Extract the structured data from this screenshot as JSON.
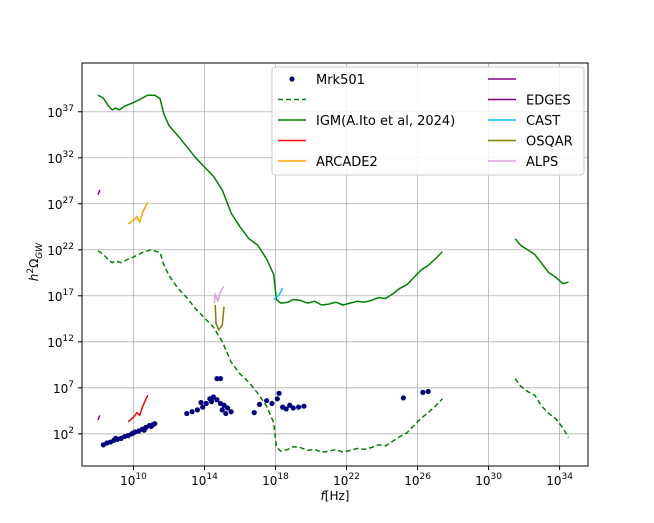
{
  "chart_data": {
    "type": "line",
    "title": "",
    "xlabel": "f[Hz]",
    "ylabel": "h^2Ω_GW",
    "xscale": "log10",
    "yscale": "log10",
    "xlim_log10": [
      7.1,
      35.6
    ],
    "ylim_log10": [
      -1.5,
      42.3
    ],
    "grid": true,
    "legend_placement": "top-right, two columns",
    "xticks": [
      {
        "exp": 10,
        "base": "10",
        "sup": "10"
      },
      {
        "exp": 14,
        "base": "10",
        "sup": "14"
      },
      {
        "exp": 18,
        "base": "10",
        "sup": "18"
      },
      {
        "exp": 22,
        "base": "10",
        "sup": "22"
      },
      {
        "exp": 26,
        "base": "10",
        "sup": "26"
      },
      {
        "exp": 30,
        "base": "10",
        "sup": "30"
      },
      {
        "exp": 34,
        "base": "10",
        "sup": "34"
      }
    ],
    "yticks": [
      {
        "exp": 2,
        "base": "10",
        "sup": "2"
      },
      {
        "exp": 7,
        "base": "10",
        "sup": "7"
      },
      {
        "exp": 12,
        "base": "10",
        "sup": "12"
      },
      {
        "exp": 17,
        "base": "10",
        "sup": "17"
      },
      {
        "exp": 22,
        "base": "10",
        "sup": "22"
      },
      {
        "exp": 27,
        "base": "10",
        "sup": "27"
      },
      {
        "exp": 32,
        "base": "10",
        "sup": "32"
      },
      {
        "exp": 37,
        "base": "10",
        "sup": "37"
      }
    ],
    "legend": [
      {
        "name": "Mrk501",
        "color": "#000080",
        "style": "dot"
      },
      {
        "name": "",
        "color": "#008000",
        "style": "dashed"
      },
      {
        "name": "IGM(A.Ito et al, 2024)",
        "color": "#008000",
        "style": "solid"
      },
      {
        "name": "",
        "color": "#ff0000",
        "style": "solid"
      },
      {
        "name": "ARCADE2",
        "color": "#ffa500",
        "style": "solid"
      },
      {
        "name": "",
        "color": "#8b008b",
        "style": "solid"
      },
      {
        "name": "EDGES",
        "color": "#800080",
        "style": "solid"
      },
      {
        "name": "CAST",
        "color": "#00bfff",
        "style": "solid"
      },
      {
        "name": "OSQAR",
        "color": "#808000",
        "style": "solid"
      },
      {
        "name": "ALPS",
        "color": "#dda0dd",
        "style": "solid"
      }
    ],
    "series": [
      {
        "name": "IGM(A.Ito et al, 2024)",
        "color": "#008000",
        "style": "solid",
        "points": [
          [
            8.0,
            38.8
          ],
          [
            8.3,
            38.5
          ],
          [
            8.6,
            37.6
          ],
          [
            8.8,
            37.2
          ],
          [
            9.0,
            37.4
          ],
          [
            9.2,
            37.2
          ],
          [
            9.5,
            37.6
          ],
          [
            10.0,
            38.0
          ],
          [
            10.5,
            38.5
          ],
          [
            10.8,
            38.8
          ],
          [
            11.2,
            38.8
          ],
          [
            11.5,
            38.4
          ],
          [
            11.7,
            36.8
          ],
          [
            12.0,
            35.5
          ],
          [
            12.5,
            34.4
          ],
          [
            13.0,
            33.2
          ],
          [
            13.5,
            32.0
          ],
          [
            14.0,
            31.0
          ],
          [
            14.5,
            30.0
          ],
          [
            15.0,
            28.5
          ],
          [
            15.5,
            26.0
          ],
          [
            16.0,
            24.5
          ],
          [
            16.5,
            23.2
          ],
          [
            17.0,
            22.5
          ],
          [
            17.5,
            21.0
          ],
          [
            17.9,
            19.3
          ],
          [
            18.05,
            16.6
          ],
          [
            18.3,
            16.2
          ],
          [
            18.7,
            16.3
          ],
          [
            19.0,
            16.6
          ],
          [
            19.4,
            16.5
          ],
          [
            19.8,
            16.2
          ],
          [
            20.2,
            16.4
          ],
          [
            20.6,
            16.0
          ],
          [
            21.0,
            16.1
          ],
          [
            21.4,
            16.3
          ],
          [
            21.8,
            16.0
          ],
          [
            22.2,
            16.2
          ],
          [
            22.6,
            16.4
          ],
          [
            23.0,
            16.3
          ],
          [
            23.4,
            16.5
          ],
          [
            23.8,
            16.8
          ],
          [
            24.2,
            16.7
          ],
          [
            24.6,
            17.2
          ],
          [
            25.0,
            17.8
          ],
          [
            25.4,
            18.2
          ],
          [
            25.8,
            19.0
          ],
          [
            26.2,
            19.8
          ],
          [
            26.6,
            20.3
          ],
          [
            27.0,
            21.0
          ],
          [
            27.4,
            21.8
          ]
        ]
      },
      {
        "name": "IGM(A.Ito et al, 2024)",
        "color": "#008000",
        "style": "solid",
        "points": [
          [
            31.5,
            23.2
          ],
          [
            31.8,
            22.5
          ],
          [
            32.2,
            22.0
          ],
          [
            32.6,
            21.5
          ],
          [
            33.0,
            20.5
          ],
          [
            33.4,
            19.5
          ],
          [
            33.8,
            19.0
          ],
          [
            34.2,
            18.3
          ],
          [
            34.5,
            18.5
          ]
        ]
      },
      {
        "name": "",
        "color": "#008000",
        "style": "dashed",
        "points": [
          [
            8.0,
            21.9
          ],
          [
            8.3,
            21.5
          ],
          [
            8.6,
            20.9
          ],
          [
            8.8,
            20.6
          ],
          [
            9.0,
            20.8
          ],
          [
            9.3,
            20.6
          ],
          [
            9.6,
            20.9
          ],
          [
            10.0,
            21.2
          ],
          [
            10.5,
            21.7
          ],
          [
            11.0,
            22.0
          ],
          [
            11.5,
            21.7
          ],
          [
            11.7,
            20.4
          ],
          [
            12.0,
            19.2
          ],
          [
            12.5,
            17.8
          ],
          [
            13.0,
            16.8
          ],
          [
            13.5,
            15.6
          ],
          [
            14.0,
            14.6
          ],
          [
            14.5,
            13.6
          ],
          [
            15.0,
            12.0
          ],
          [
            15.5,
            9.8
          ],
          [
            16.0,
            8.5
          ],
          [
            16.5,
            7.6
          ],
          [
            17.0,
            6.4
          ],
          [
            17.5,
            5.0
          ],
          [
            17.9,
            3.2
          ],
          [
            18.05,
            0.6
          ],
          [
            18.3,
            0.1
          ],
          [
            18.7,
            0.3
          ],
          [
            19.0,
            0.6
          ],
          [
            19.4,
            0.5
          ],
          [
            19.8,
            0.2
          ],
          [
            20.2,
            0.3
          ],
          [
            20.6,
            0.0
          ],
          [
            21.0,
            0.1
          ],
          [
            21.4,
            0.3
          ],
          [
            21.8,
            0.0
          ],
          [
            22.2,
            0.2
          ],
          [
            22.6,
            0.4
          ],
          [
            23.0,
            0.3
          ],
          [
            23.4,
            0.5
          ],
          [
            23.8,
            0.8
          ],
          [
            24.2,
            0.7
          ],
          [
            24.6,
            1.2
          ],
          [
            25.0,
            1.7
          ],
          [
            25.4,
            2.1
          ],
          [
            25.8,
            2.9
          ],
          [
            26.2,
            3.7
          ],
          [
            26.6,
            4.3
          ],
          [
            27.0,
            5.0
          ],
          [
            27.4,
            5.8
          ]
        ]
      },
      {
        "name": "",
        "color": "#008000",
        "style": "dashed",
        "points": [
          [
            31.5,
            8.0
          ],
          [
            31.8,
            7.2
          ],
          [
            32.2,
            6.6
          ],
          [
            32.6,
            6.2
          ],
          [
            33.0,
            5.0
          ],
          [
            33.4,
            4.2
          ],
          [
            33.8,
            3.6
          ],
          [
            34.2,
            2.6
          ],
          [
            34.5,
            1.6
          ]
        ]
      },
      {
        "name": "ARCADE2",
        "color": "#ffa500",
        "style": "solid",
        "points": [
          [
            9.7,
            24.8
          ],
          [
            10.0,
            25.2
          ],
          [
            10.2,
            25.6
          ],
          [
            10.35,
            25.0
          ],
          [
            10.5,
            26.0
          ],
          [
            10.8,
            27.2
          ]
        ]
      },
      {
        "name": "",
        "color": "#ff0000",
        "style": "solid",
        "points": [
          [
            9.7,
            3.3
          ],
          [
            10.0,
            3.8
          ],
          [
            10.2,
            4.3
          ],
          [
            10.35,
            4.0
          ],
          [
            10.5,
            4.9
          ],
          [
            10.8,
            6.2
          ]
        ]
      },
      {
        "name": "",
        "color": "#8b008b",
        "style": "solid",
        "points": [
          [
            8.0,
            3.5
          ],
          [
            8.1,
            4.0
          ]
        ]
      },
      {
        "name": "EDGES",
        "color": "#800080",
        "style": "solid",
        "points": [
          [
            8.0,
            28.0
          ],
          [
            8.1,
            28.5
          ]
        ]
      },
      {
        "name": "CAST",
        "color": "#00bfff",
        "style": "solid",
        "points": [
          [
            17.9,
            16.6
          ],
          [
            18.2,
            17.1
          ],
          [
            18.4,
            17.8
          ]
        ]
      },
      {
        "name": "OSQAR",
        "color": "#808000",
        "style": "solid",
        "points": [
          [
            14.6,
            16.0
          ],
          [
            14.65,
            14.0
          ],
          [
            14.8,
            13.3
          ],
          [
            15.0,
            13.8
          ],
          [
            15.1,
            15.8
          ]
        ]
      },
      {
        "name": "ALPS",
        "color": "#dda0dd",
        "style": "solid",
        "points": [
          [
            14.55,
            16.2
          ],
          [
            14.6,
            17.2
          ],
          [
            14.75,
            16.4
          ],
          [
            14.9,
            17.5
          ],
          [
            15.1,
            18.0
          ]
        ]
      }
    ],
    "scatter": {
      "name": "Mrk501",
      "color": "#000080",
      "points": [
        [
          8.3,
          0.8
        ],
        [
          8.5,
          1.0
        ],
        [
          8.7,
          1.1
        ],
        [
          8.9,
          1.3
        ],
        [
          9.1,
          1.4
        ],
        [
          9.3,
          1.5
        ],
        [
          9.5,
          1.7
        ],
        [
          9.7,
          1.8
        ],
        [
          9.9,
          2.0
        ],
        [
          10.1,
          2.2
        ],
        [
          10.3,
          2.3
        ],
        [
          10.5,
          2.5
        ],
        [
          10.7,
          2.7
        ],
        [
          10.9,
          2.9
        ],
        [
          11.1,
          3.0
        ],
        [
          11.2,
          3.1
        ],
        [
          9.0,
          1.5
        ],
        [
          10.0,
          2.1
        ],
        [
          10.6,
          2.4
        ],
        [
          11.0,
          2.8
        ],
        [
          13.0,
          4.2
        ],
        [
          13.3,
          4.4
        ],
        [
          13.6,
          4.6
        ],
        [
          13.9,
          4.9
        ],
        [
          14.1,
          5.3
        ],
        [
          14.3,
          5.8
        ],
        [
          14.5,
          6.0
        ],
        [
          14.7,
          5.7
        ],
        [
          14.9,
          5.3
        ],
        [
          15.1,
          5.1
        ],
        [
          15.3,
          4.8
        ],
        [
          15.5,
          4.4
        ],
        [
          13.8,
          5.4
        ],
        [
          14.4,
          5.5
        ],
        [
          15.0,
          4.6
        ],
        [
          14.7,
          8.0
        ],
        [
          14.9,
          8.0
        ],
        [
          15.2,
          4.2
        ],
        [
          16.8,
          4.3
        ],
        [
          17.1,
          5.2
        ],
        [
          17.5,
          5.6
        ],
        [
          17.8,
          5.3
        ],
        [
          18.1,
          5.8
        ],
        [
          18.2,
          6.4
        ],
        [
          18.4,
          4.9
        ],
        [
          18.6,
          4.7
        ],
        [
          18.8,
          5.1
        ],
        [
          19.0,
          4.8
        ],
        [
          19.3,
          4.9
        ],
        [
          19.6,
          5.0
        ],
        [
          25.2,
          5.9
        ],
        [
          26.3,
          6.5
        ],
        [
          26.6,
          6.6
        ]
      ]
    }
  }
}
